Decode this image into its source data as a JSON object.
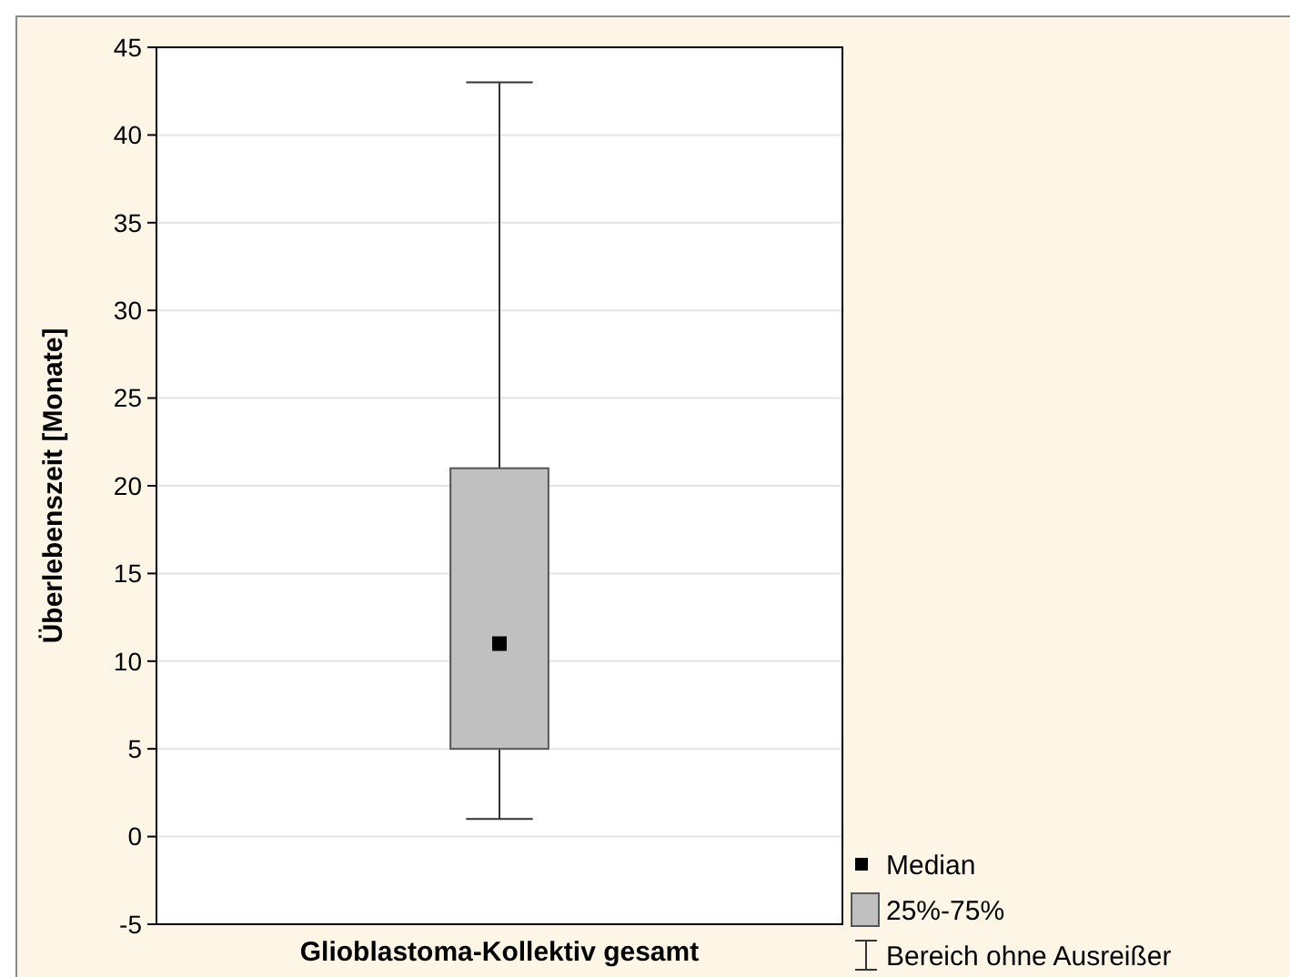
{
  "chart_data": {
    "type": "box",
    "ylabel": "Überlebenszeit [Monate]",
    "categories": [
      "Glioblastoma-Kollektiv gesamt"
    ],
    "boxes": [
      {
        "low": 1,
        "q1": 5,
        "median": 11,
        "q3": 21,
        "high": 43
      }
    ],
    "color": "#c0c0c0",
    "ylim": [
      -5,
      45
    ],
    "yticks": [
      -5,
      0,
      5,
      10,
      15,
      20,
      25,
      30,
      35,
      40,
      45
    ],
    "grid": "y",
    "marker": "square",
    "annotations": [
      "Median",
      "25%-75%",
      "Bereich ohne Ausreißer"
    ]
  }
}
